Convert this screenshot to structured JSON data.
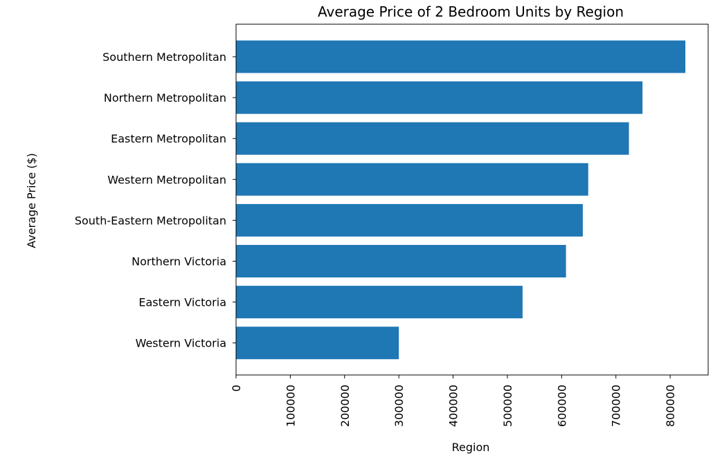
{
  "chart_data": {
    "type": "bar",
    "orientation": "horizontal",
    "title": "Average Price of 2 Bedroom Units by Region",
    "xlabel": "Region",
    "ylabel": "Average Price ($)",
    "categories": [
      "Southern Metropolitan",
      "Northern Metropolitan",
      "Eastern Metropolitan",
      "Western Metropolitan",
      "South-Eastern Metropolitan",
      "Northern Victoria",
      "Eastern Victoria",
      "Western Victoria"
    ],
    "values": [
      828000,
      749000,
      724000,
      649000,
      639000,
      608000,
      528000,
      300000
    ],
    "xlim": [
      0,
      870000
    ],
    "xticks": [
      0,
      100000,
      200000,
      300000,
      400000,
      500000,
      600000,
      700000,
      800000
    ],
    "xtick_labels": [
      "0",
      "100000",
      "200000",
      "300000",
      "400000",
      "500000",
      "600000",
      "700000",
      "800000"
    ],
    "bar_color": "#1f77b4",
    "grid": false,
    "legend": "none"
  }
}
